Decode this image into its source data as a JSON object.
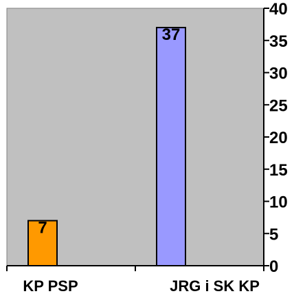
{
  "chart_data": {
    "type": "bar",
    "categories": [
      "KP PSP",
      "JRG i SK KP"
    ],
    "values": [
      7,
      37
    ],
    "bar_colors": [
      "#FF9900",
      "#9999FF"
    ],
    "plot_background": "#C0C0C0",
    "ylim": [
      0,
      40
    ],
    "yticks": [
      0,
      5,
      10,
      15,
      20,
      25,
      30,
      35,
      40
    ],
    "y_axis_side": "right",
    "data_labels": [
      "7",
      "37"
    ],
    "grid": false,
    "legend": "none"
  }
}
